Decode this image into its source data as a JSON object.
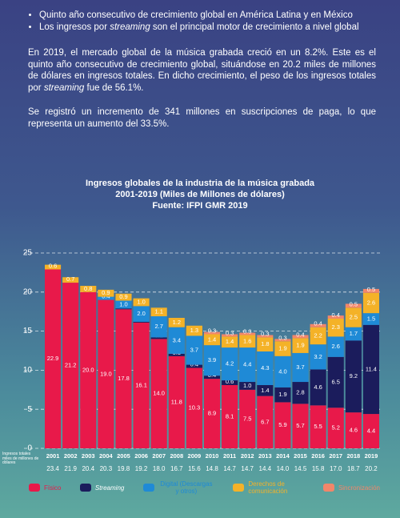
{
  "bullets": [
    [
      "Quinto año consecutivo de crecimiento global en América Latina y en México"
    ],
    [
      "Los ingresos por ",
      "streaming",
      " son el principal motor de crecimiento a nivel global"
    ]
  ],
  "paragraphs": [
    [
      "En 2019, el mercado global de la música grabada creció en un 8.2%. Este es el quinto año consecutivo de crecimiento global, situándose en 20.2 miles de millones de dólares en ingresos totales. En dicho crecimiento, el peso de los ingresos totales por ",
      "streaming",
      " fue de 56.1%."
    ],
    [
      "Se registró un incremento de 341 millones en suscripciones de paga, lo que representa un aumento del 33.5%."
    ]
  ],
  "chart_data": {
    "type": "stacked-bar",
    "title": "Ingresos globales de la industria de la música grabada",
    "subtitle": "2001-2019 (Miles de Millones de dólares)",
    "source": "Fuente: IFPI GMR 2019",
    "y_label": "Ingresos totales miles de millones de dólares",
    "categories": [
      "2001",
      "2002",
      "2003",
      "2004",
      "2005",
      "2006",
      "2007",
      "2008",
      "2009",
      "2010",
      "2011",
      "2012",
      "2013",
      "2014",
      "2015",
      "2016",
      "2017",
      "2018",
      "2019"
    ],
    "totals": [
      "23.4",
      "21.9",
      "20.4",
      "20.3",
      "19.8",
      "19.2",
      "18.0",
      "16.7",
      "15.6",
      "14.8",
      "14.7",
      "14.7",
      "14.4",
      "14.0",
      "14.5",
      "15.8",
      "17.0",
      "18.7",
      "20.2"
    ],
    "ylim": [
      0,
      25
    ],
    "yticks": [
      0,
      5,
      10,
      15,
      20,
      25
    ],
    "grid": true,
    "series": [
      {
        "name": "Físico",
        "color": "#e8194a",
        "values": [
          22.9,
          21.2,
          20.0,
          19.0,
          17.8,
          16.1,
          14.0,
          11.8,
          10.3,
          8.9,
          8.1,
          7.5,
          6.7,
          5.9,
          5.7,
          5.5,
          5.2,
          4.6,
          4.4
        ],
        "value_labels": [
          "22.9",
          "21.2",
          "20.0",
          "19.0",
          "17.8",
          "16.1",
          "14.0",
          "11.8",
          "10.3",
          "8.9",
          "8.1",
          "7.5",
          "6.7",
          "5.9",
          "5.7",
          "5.5",
          "5.2",
          "4.6",
          "4.4"
        ]
      },
      {
        "name": "Streaming",
        "color": "#1b1c5c",
        "values": [
          null,
          null,
          null,
          0,
          0.1,
          0.1,
          0.2,
          0.3,
          0.4,
          0.4,
          0.6,
          1.0,
          1.4,
          1.9,
          2.8,
          4.6,
          6.5,
          9.2,
          11.4
        ],
        "value_labels": [
          null,
          null,
          null,
          "0.0",
          "0.1",
          "0.1",
          "0.2",
          "0.3",
          "0.4",
          "0.4",
          "0.6",
          "1.0",
          "1.4",
          "1.9",
          "2.8",
          "4.6",
          "6.5",
          "9.2",
          "11.4"
        ]
      },
      {
        "name": "Digital (Descargas y otros)",
        "color": "#1f8ad6",
        "values": [
          null,
          null,
          null,
          0.4,
          1.0,
          2.0,
          2.7,
          3.4,
          3.7,
          3.9,
          4.2,
          4.4,
          4.3,
          4.0,
          3.7,
          3.2,
          2.6,
          1.7,
          1.5
        ],
        "value_labels": [
          null,
          null,
          null,
          "0.4",
          "1.0",
          "2.0",
          "2.7",
          "3.4",
          "3.7",
          "3.9",
          "4.2",
          "4.4",
          "4.3",
          "4.0",
          "3.7",
          "3.2",
          "2.6",
          "1.7",
          "1.5"
        ]
      },
      {
        "name": "Derechos de comunicación",
        "color": "#f4b228",
        "values": [
          0.6,
          0.7,
          0.8,
          0.9,
          0.9,
          1.0,
          1.1,
          1.2,
          1.3,
          1.4,
          1.4,
          1.6,
          1.8,
          1.9,
          1.9,
          2.2,
          2.3,
          2.5,
          2.6
        ],
        "value_labels": [
          "0.6",
          "0.7",
          "0.8",
          "0.9",
          "0.9",
          "1.0",
          "1.1",
          "1.2",
          "1.3",
          "1.4",
          "1.4",
          "1.6",
          "1.8",
          "1.9",
          "1.9",
          "2.2",
          "2.3",
          "2.5",
          "2.6"
        ]
      },
      {
        "name": "Sincronización",
        "color": "#f2866a",
        "values": [
          null,
          null,
          null,
          null,
          null,
          null,
          null,
          null,
          null,
          0.3,
          0.3,
          0.3,
          0.3,
          0.3,
          0.4,
          0.4,
          0.4,
          0.5,
          0.5
        ],
        "value_labels": [
          null,
          null,
          null,
          null,
          null,
          null,
          null,
          null,
          null,
          "0.3",
          "0.3",
          "0.3",
          "0.3",
          "0.3",
          "0.4",
          "0.4",
          "0.4",
          "0.5",
          "0.5"
        ]
      }
    ]
  }
}
